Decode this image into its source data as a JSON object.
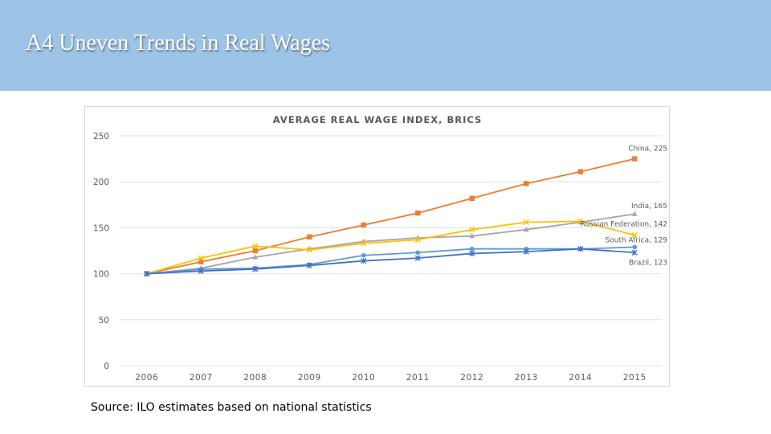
{
  "slide": {
    "title": "A4  Uneven Trends in Real Wages",
    "source": "Source: ILO estimates based on national statistics"
  },
  "chart_data": {
    "type": "line",
    "title": "AVERAGE REAL WAGE INDEX, BRICS",
    "xlabel": "",
    "ylabel": "",
    "ylim": [
      0,
      250
    ],
    "yticks": [
      0,
      50,
      100,
      150,
      200,
      250
    ],
    "grid": true,
    "legend": "end-labels",
    "x": [
      "2006",
      "2007",
      "2008",
      "2009",
      "2010",
      "2011",
      "2012",
      "2013",
      "2014",
      "2015"
    ],
    "series": [
      {
        "name": "China",
        "end_label": "China, 225",
        "color": "#ed7d31",
        "marker": "square",
        "values": [
          100,
          113,
          125,
          140,
          153,
          166,
          182,
          198,
          211,
          225
        ]
      },
      {
        "name": "India",
        "end_label": "India, 165",
        "color": "#a5a5a5",
        "marker": "triangle",
        "values": [
          100,
          106,
          118,
          127,
          135,
          139,
          141,
          148,
          156,
          165
        ]
      },
      {
        "name": "Russian Federation",
        "end_label": "Russian Federation, 142",
        "color": "#ffc000",
        "marker": "x",
        "values": [
          100,
          117,
          130,
          126,
          133,
          137,
          148,
          156,
          157,
          142
        ]
      },
      {
        "name": "South Africa",
        "end_label": "South Africa, 129",
        "color": "#5b9bd5",
        "marker": "circle",
        "values": [
          100,
          105,
          106,
          110,
          120,
          123,
          127,
          127,
          127,
          129
        ]
      },
      {
        "name": "Brazil",
        "end_label": "Brazil, 123",
        "color": "#4472c4",
        "marker": "star",
        "values": [
          100,
          103,
          105,
          109,
          114,
          117,
          122,
          124,
          127,
          123
        ]
      }
    ]
  }
}
